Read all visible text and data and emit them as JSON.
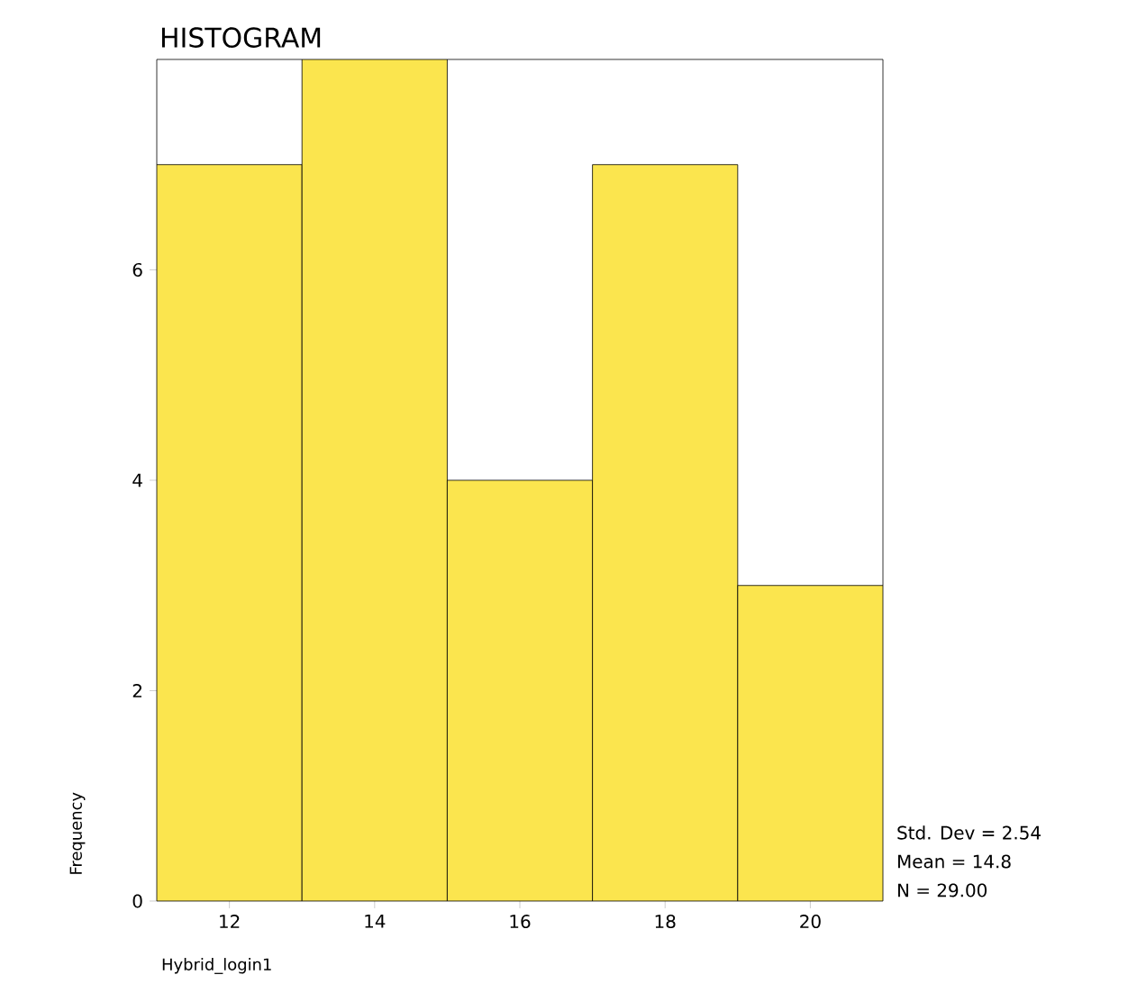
{
  "chart_data": {
    "type": "histogram",
    "title": "HISTOGRAM",
    "xlabel": "Hybrid_login1",
    "ylabel": "Frequency",
    "bins": [
      11,
      13,
      15,
      17,
      19,
      21
    ],
    "values": [
      7,
      8,
      4,
      7,
      3
    ],
    "color": "#fbe54e",
    "xlim": [
      11,
      21
    ],
    "xticks": [
      12,
      14,
      16,
      18,
      20
    ],
    "ylim": [
      0,
      8
    ],
    "yticks": [
      0,
      2,
      4,
      6
    ],
    "annotations": [
      "Std. Dev = 2.54",
      "Mean = 14.8",
      "N = 29.00"
    ]
  }
}
